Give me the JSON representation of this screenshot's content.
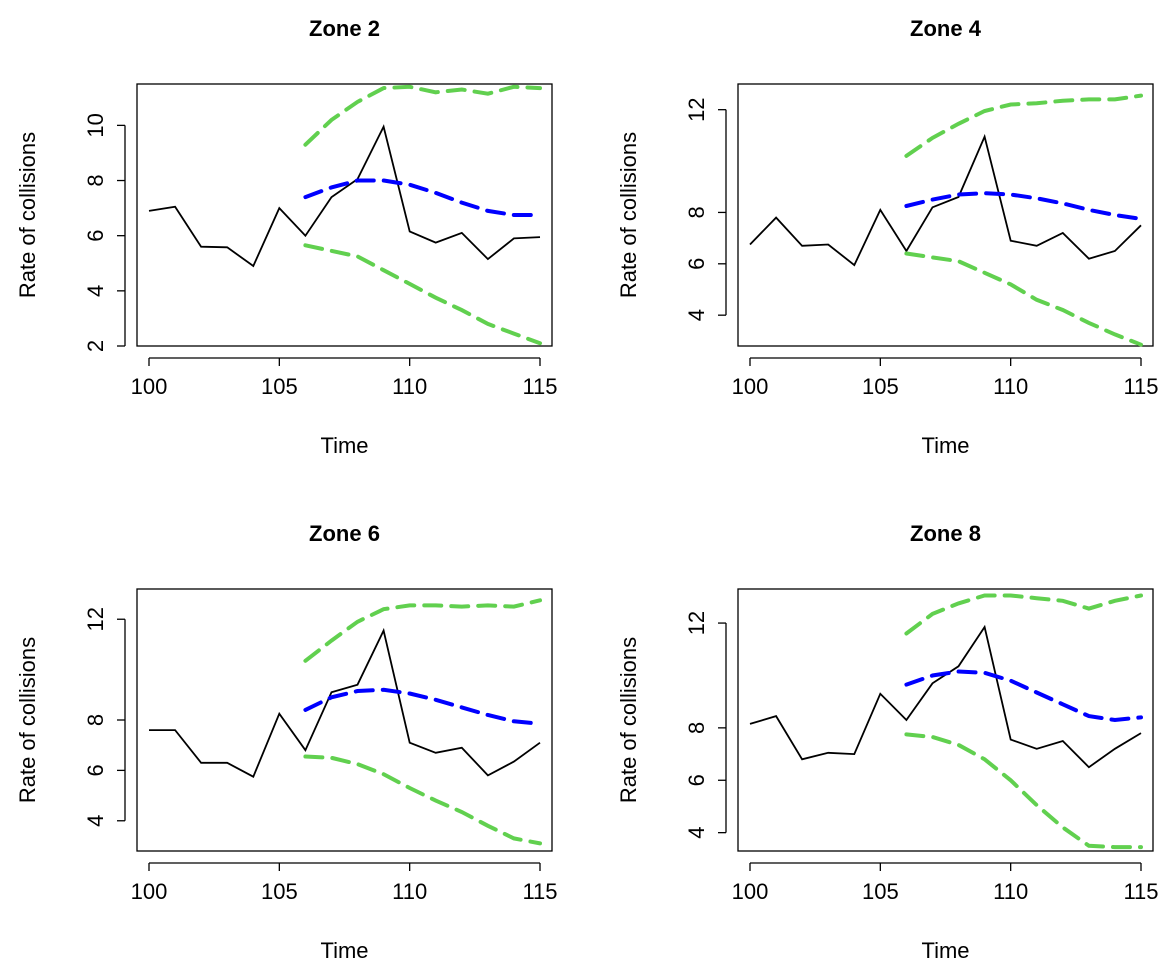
{
  "colors": {
    "observed": "#000000",
    "forecast": "#0000ff",
    "interval": "#61d04f"
  },
  "chart_data": [
    {
      "type": "line",
      "title": "Zone 2",
      "xlabel": "Time",
      "ylabel": "Rate of collisions",
      "xlim": [
        100,
        115
      ],
      "ylim": [
        2,
        11.5
      ],
      "xticks": [
        100,
        105,
        110,
        115
      ],
      "yticks": [
        2,
        4,
        6,
        8,
        10
      ],
      "grid": false,
      "series": [
        {
          "role": "observed",
          "style": "solid",
          "x": [
            100,
            101,
            102,
            103,
            104,
            105,
            106,
            107,
            108,
            109,
            110,
            111,
            112,
            113,
            114,
            115
          ],
          "y": [
            6.9,
            7.05,
            5.6,
            5.58,
            4.9,
            7.0,
            6.0,
            7.4,
            8.05,
            9.95,
            6.15,
            5.75,
            6.1,
            5.15,
            5.9,
            5.95
          ]
        },
        {
          "role": "forecast",
          "style": "dashed",
          "x": [
            106,
            107,
            108,
            109,
            110,
            111,
            112,
            113,
            114,
            115
          ],
          "y": [
            7.4,
            7.75,
            8.0,
            8.0,
            7.85,
            7.55,
            7.2,
            6.9,
            6.75,
            6.75
          ]
        },
        {
          "role": "upper",
          "style": "dashed",
          "x": [
            106,
            107,
            108,
            109,
            110,
            111,
            112,
            113,
            114,
            115
          ],
          "y": [
            9.3,
            10.2,
            10.85,
            11.35,
            11.4,
            11.2,
            11.3,
            11.15,
            11.4,
            11.35
          ]
        },
        {
          "role": "lower",
          "style": "dashed",
          "x": [
            106,
            107,
            108,
            109,
            110,
            111,
            112,
            113,
            114,
            115
          ],
          "y": [
            5.65,
            5.45,
            5.25,
            4.75,
            4.25,
            3.75,
            3.3,
            2.8,
            2.45,
            2.1
          ]
        }
      ]
    },
    {
      "type": "line",
      "title": "Zone 4",
      "xlabel": "Time",
      "ylabel": "Rate of collisions",
      "xlim": [
        100,
        115
      ],
      "ylim": [
        2.8,
        13
      ],
      "xticks": [
        100,
        105,
        110,
        115
      ],
      "yticks": [
        4,
        6,
        8,
        12
      ],
      "grid": false,
      "series": [
        {
          "role": "observed",
          "style": "solid",
          "x": [
            100,
            101,
            102,
            103,
            104,
            105,
            106,
            107,
            108,
            109,
            110,
            111,
            112,
            113,
            114,
            115
          ],
          "y": [
            6.75,
            7.8,
            6.7,
            6.75,
            5.95,
            8.1,
            6.5,
            8.2,
            8.6,
            10.95,
            6.9,
            6.7,
            7.2,
            6.2,
            6.5,
            7.5
          ]
        },
        {
          "role": "forecast",
          "style": "dashed",
          "x": [
            106,
            107,
            108,
            109,
            110,
            111,
            112,
            113,
            114,
            115
          ],
          "y": [
            8.25,
            8.5,
            8.7,
            8.75,
            8.7,
            8.55,
            8.35,
            8.1,
            7.9,
            7.75
          ]
        },
        {
          "role": "upper",
          "style": "dashed",
          "x": [
            106,
            107,
            108,
            109,
            110,
            111,
            112,
            113,
            114,
            115
          ],
          "y": [
            10.2,
            10.9,
            11.45,
            11.95,
            12.2,
            12.25,
            12.35,
            12.4,
            12.4,
            12.55
          ]
        },
        {
          "role": "lower",
          "style": "dashed",
          "x": [
            106,
            107,
            108,
            109,
            110,
            111,
            112,
            113,
            114,
            115
          ],
          "y": [
            6.4,
            6.25,
            6.1,
            5.65,
            5.2,
            4.6,
            4.2,
            3.7,
            3.25,
            2.85
          ]
        }
      ]
    },
    {
      "type": "line",
      "title": "Zone 6",
      "xlabel": "Time",
      "ylabel": "Rate of collisions",
      "xlim": [
        100,
        115
      ],
      "ylim": [
        2.8,
        13.2
      ],
      "xticks": [
        100,
        105,
        110,
        115
      ],
      "yticks": [
        4,
        6,
        8,
        12
      ],
      "grid": false,
      "series": [
        {
          "role": "observed",
          "style": "solid",
          "x": [
            100,
            101,
            102,
            103,
            104,
            105,
            106,
            107,
            108,
            109,
            110,
            111,
            112,
            113,
            114,
            115
          ],
          "y": [
            7.6,
            7.6,
            6.3,
            6.3,
            5.75,
            8.25,
            6.8,
            9.1,
            9.4,
            11.55,
            7.1,
            6.7,
            6.9,
            5.8,
            6.35,
            7.1
          ]
        },
        {
          "role": "forecast",
          "style": "dashed",
          "x": [
            106,
            107,
            108,
            109,
            110,
            111,
            112,
            113,
            114,
            115
          ],
          "y": [
            8.4,
            8.9,
            9.15,
            9.2,
            9.05,
            8.8,
            8.5,
            8.2,
            7.95,
            7.85
          ]
        },
        {
          "role": "upper",
          "style": "dashed",
          "x": [
            106,
            107,
            108,
            109,
            110,
            111,
            112,
            113,
            114,
            115
          ],
          "y": [
            10.35,
            11.15,
            11.9,
            12.4,
            12.55,
            12.55,
            12.5,
            12.55,
            12.5,
            12.75
          ]
        },
        {
          "role": "lower",
          "style": "dashed",
          "x": [
            106,
            107,
            108,
            109,
            110,
            111,
            112,
            113,
            114,
            115
          ],
          "y": [
            6.55,
            6.5,
            6.25,
            5.85,
            5.3,
            4.8,
            4.35,
            3.8,
            3.3,
            3.1
          ]
        }
      ]
    },
    {
      "type": "line",
      "title": "Zone 8",
      "xlabel": "Time",
      "ylabel": "Rate of collisions",
      "xlim": [
        100,
        115
      ],
      "ylim": [
        3.3,
        13.3
      ],
      "xticks": [
        100,
        105,
        110,
        115
      ],
      "yticks": [
        4,
        6,
        8,
        12
      ],
      "grid": false,
      "series": [
        {
          "role": "observed",
          "style": "solid",
          "x": [
            100,
            101,
            102,
            103,
            104,
            105,
            106,
            107,
            108,
            109,
            110,
            111,
            112,
            113,
            114,
            115
          ],
          "y": [
            8.15,
            8.45,
            6.8,
            7.05,
            7.0,
            9.3,
            8.3,
            9.7,
            10.35,
            11.85,
            7.55,
            7.2,
            7.5,
            6.5,
            7.2,
            7.8
          ]
        },
        {
          "role": "forecast",
          "style": "dashed",
          "x": [
            106,
            107,
            108,
            109,
            110,
            111,
            112,
            113,
            114,
            115
          ],
          "y": [
            9.65,
            10.0,
            10.15,
            10.1,
            9.8,
            9.35,
            8.9,
            8.45,
            8.3,
            8.4
          ]
        },
        {
          "role": "upper",
          "style": "dashed",
          "x": [
            106,
            107,
            108,
            109,
            110,
            111,
            112,
            113,
            114,
            115
          ],
          "y": [
            11.6,
            12.35,
            12.75,
            13.05,
            13.05,
            12.95,
            12.85,
            12.55,
            12.85,
            13.05
          ]
        },
        {
          "role": "lower",
          "style": "dashed",
          "x": [
            106,
            107,
            108,
            109,
            110,
            111,
            112,
            113,
            114,
            115
          ],
          "y": [
            7.75,
            7.65,
            7.35,
            6.8,
            6.0,
            5.05,
            4.2,
            3.5,
            3.45,
            3.45
          ]
        }
      ]
    }
  ]
}
